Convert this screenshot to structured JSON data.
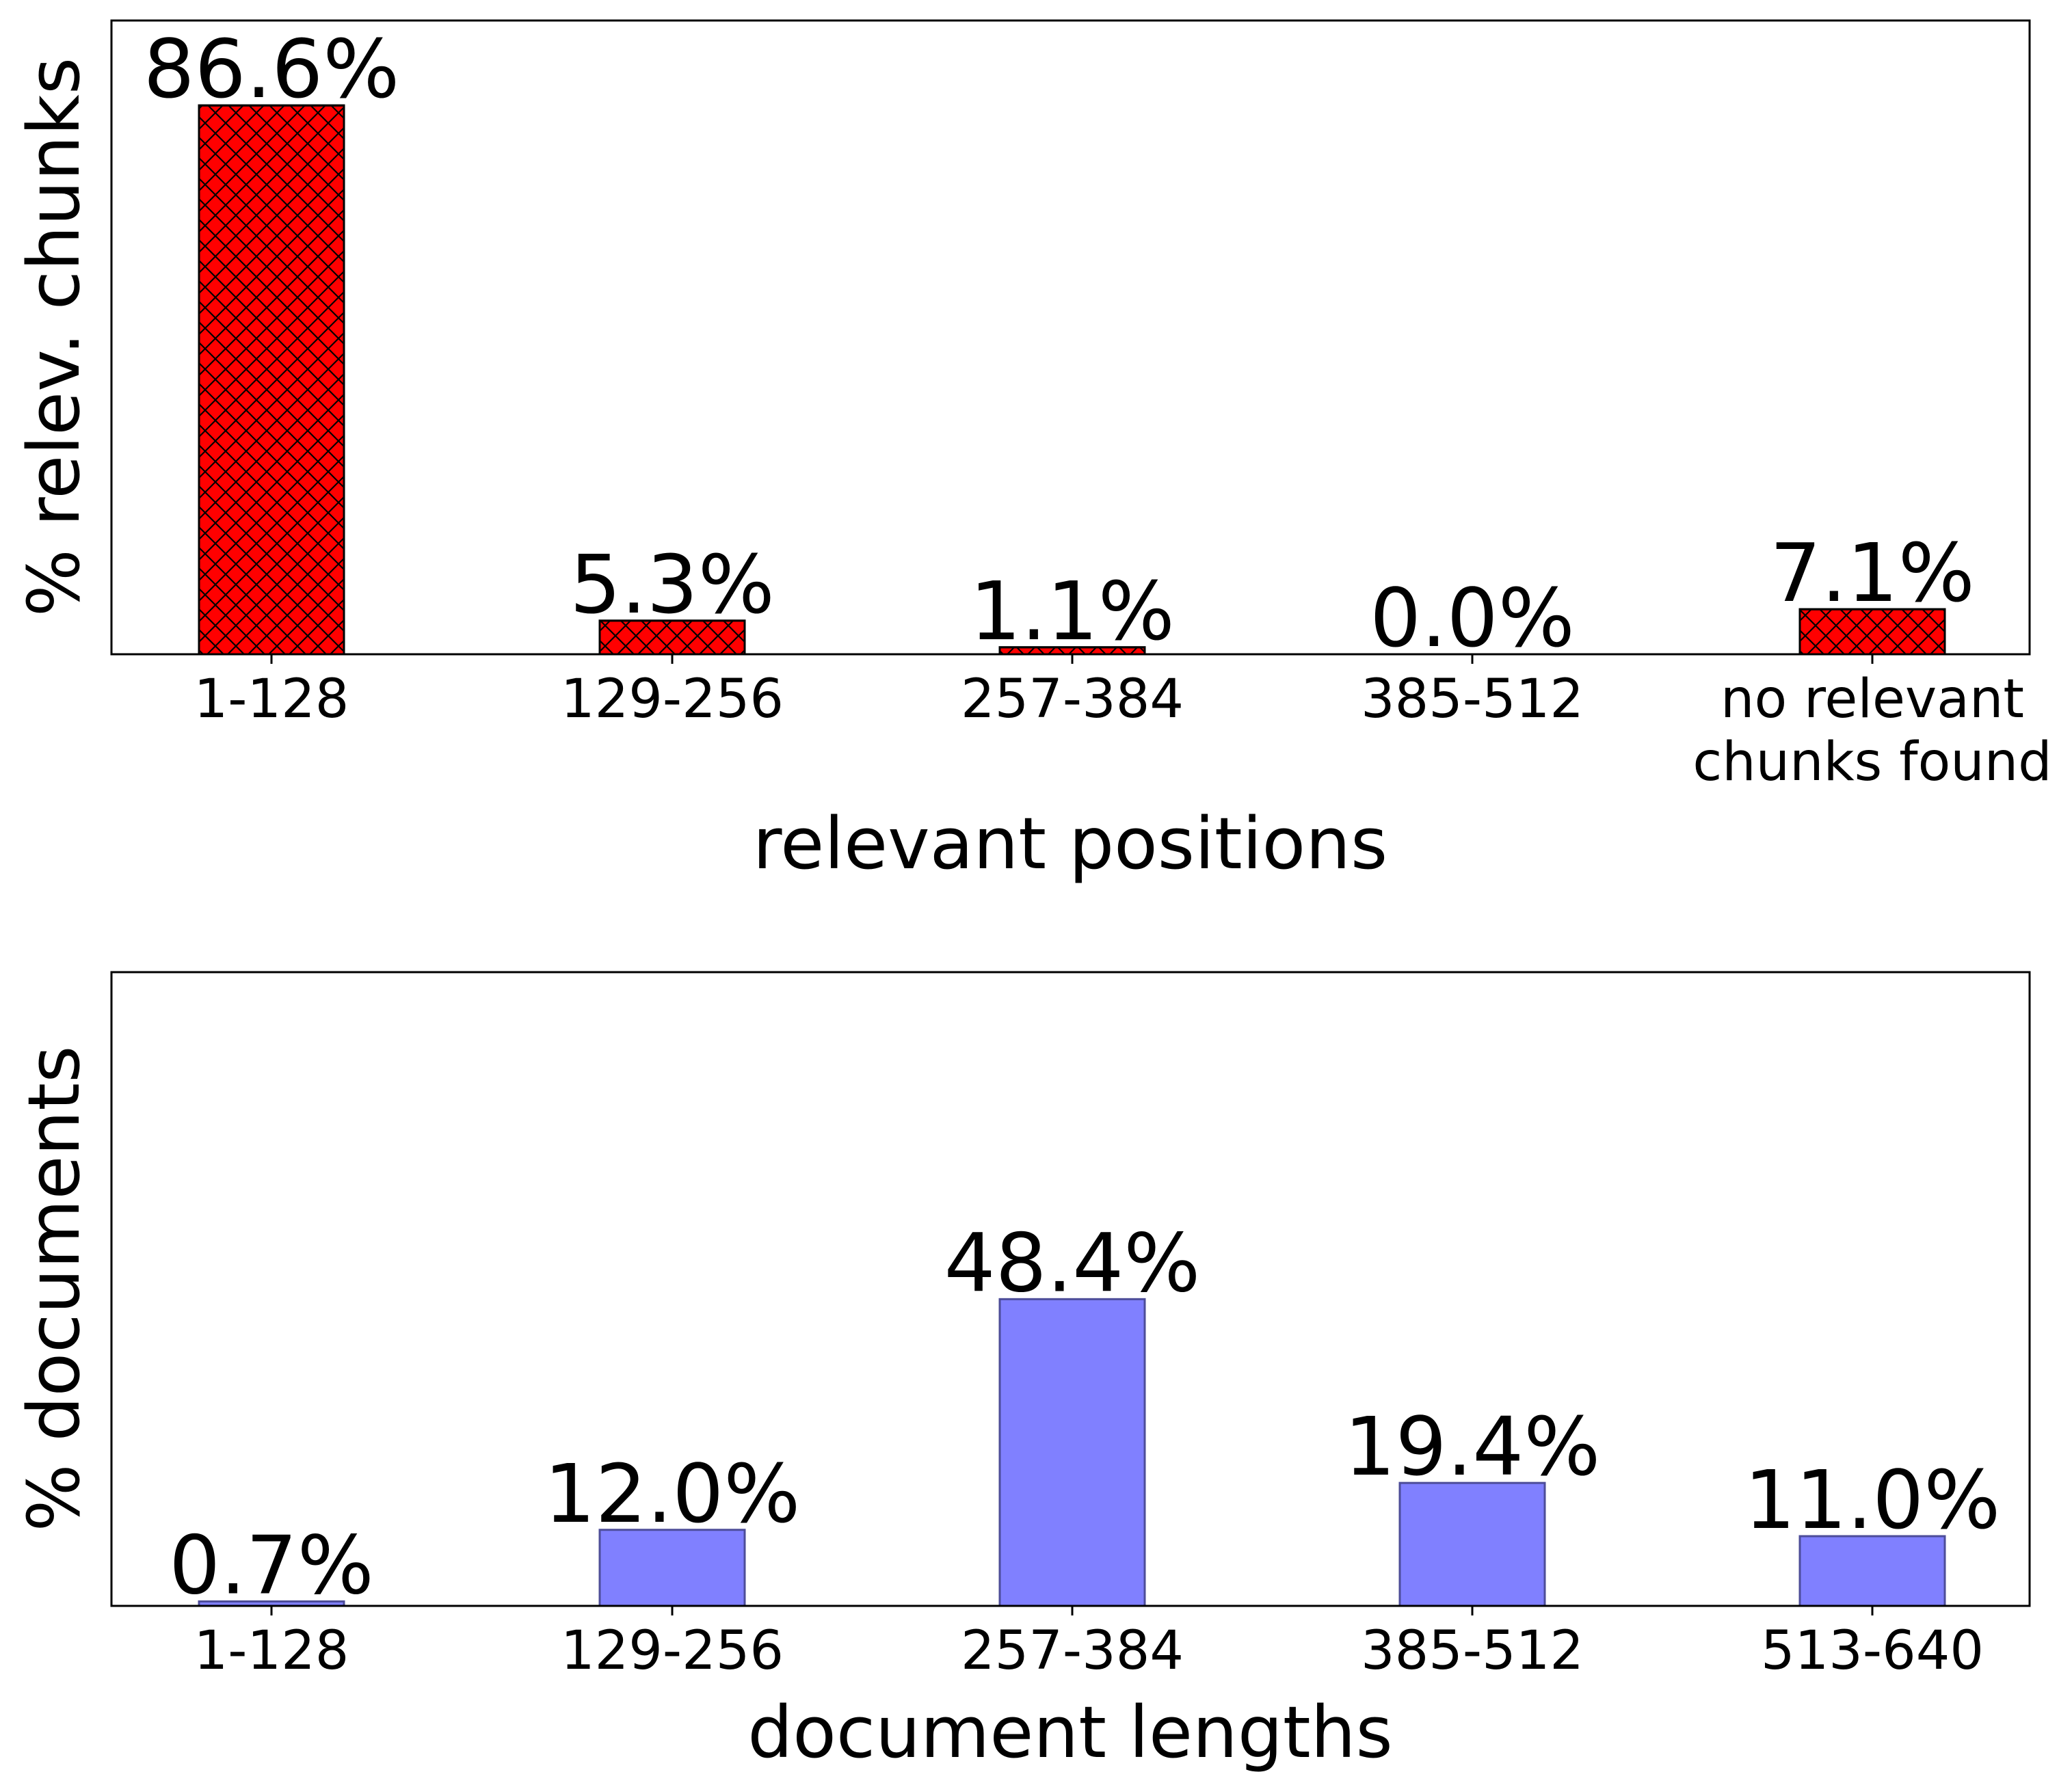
{
  "chart_data": [
    {
      "type": "bar",
      "categories": [
        "1-128",
        "129-256",
        "257-384",
        "385-512",
        "no relevant\nchunks found"
      ],
      "values": [
        86.6,
        5.3,
        1.1,
        0.0,
        7.1
      ],
      "data_labels": [
        "86.6%",
        "5.3%",
        "1.1%",
        "0.0%",
        "7.1%"
      ],
      "xlabel": "relevant positions",
      "ylabel": "% relev. chunks",
      "ylim": [
        0,
        100
      ],
      "bar_color": "#ff0000",
      "bar_edge_color": "#000000",
      "hatch": "crosshatch",
      "grid": false
    },
    {
      "type": "bar",
      "categories": [
        "1-128",
        "129-256",
        "257-384",
        "385-512",
        "513-640"
      ],
      "values": [
        0.7,
        12.0,
        48.4,
        19.4,
        11.0
      ],
      "data_labels": [
        "0.7%",
        "12.0%",
        "48.4%",
        "19.4%",
        "11.0%"
      ],
      "xlabel": "document lengths",
      "ylabel": "% documents",
      "ylim": [
        0,
        100
      ],
      "bar_color": "#8080ff",
      "bar_edge_color": "#4d4d99",
      "hatch": "none",
      "grid": false
    }
  ]
}
